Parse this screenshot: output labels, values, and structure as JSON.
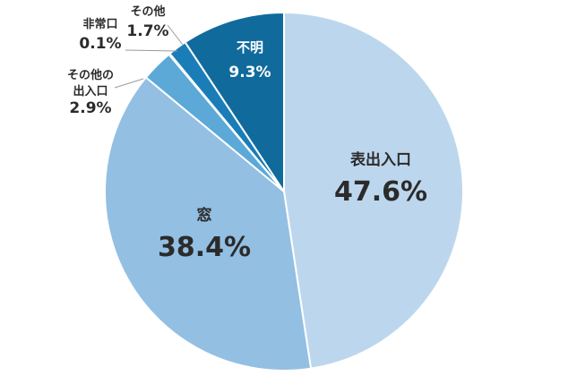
{
  "chart_data": {
    "type": "pie",
    "title": "",
    "start": "top",
    "direction": "clockwise",
    "legend": "none",
    "slices": [
      {
        "label": "表出入口",
        "label_lines": [
          "表出入口"
        ],
        "value": 47.6,
        "display": "47.6%",
        "color": "#bcd7ed"
      },
      {
        "label": "窓",
        "label_lines": [
          "窓"
        ],
        "value": 38.4,
        "display": "38.4%",
        "color": "#93bfe2"
      },
      {
        "label": "その他の出入口",
        "label_lines": [
          "その他の",
          "出入口"
        ],
        "value": 2.9,
        "display": "2.9%",
        "color": "#5ca9d8"
      },
      {
        "label": "非常口",
        "label_lines": [
          "非常口"
        ],
        "value": 0.1,
        "display": "0.1%",
        "color": "#3a90c6"
      },
      {
        "label": "その他",
        "label_lines": [
          "その他"
        ],
        "value": 1.7,
        "display": "1.7%",
        "color": "#1a7db8"
      },
      {
        "label": "不明",
        "label_lines": [
          "不明"
        ],
        "value": 9.3,
        "display": "9.3%",
        "color": "#106b9c"
      }
    ]
  }
}
